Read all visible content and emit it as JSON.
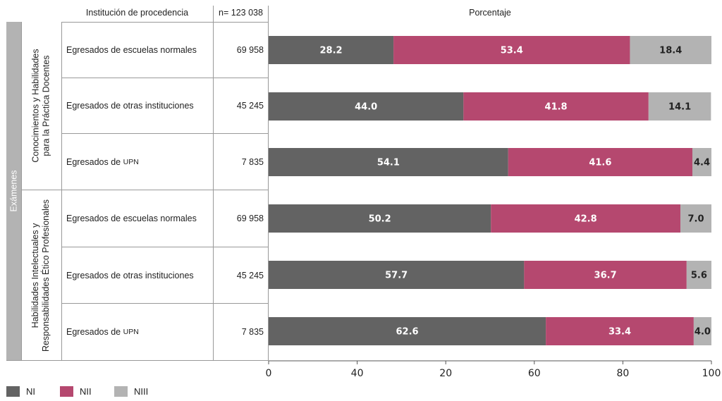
{
  "header": {
    "institution": "Institución de procedencia",
    "n_total": "n= 123 038",
    "percent": "Porcentaje"
  },
  "outer_label": "Exámenes",
  "groups": [
    {
      "line1": "Conocimientos y Habilidades",
      "line2": "para la Práctica Docentes"
    },
    {
      "line1": "Habilidades Intelectuales y",
      "line2": "Responsabilidades Ético Profesionales"
    }
  ],
  "rows": [
    {
      "label": "Egresados de escuelas normales",
      "n": "69 958"
    },
    {
      "label": "Egresados de otras instituciones",
      "n": "45 245"
    },
    {
      "label": "Egresados de",
      "label_sc": "UPN",
      "n": "7 835"
    },
    {
      "label": "Egresados de escuelas normales",
      "n": "69 958"
    },
    {
      "label": "Egresados de otras instituciones",
      "n": "45 245"
    },
    {
      "label": "Egresados de",
      "label_sc": "UPN",
      "n": "7 835"
    }
  ],
  "chart_data": {
    "type": "bar",
    "orientation": "horizontal",
    "stacked": true,
    "categories": [
      "Egresados de escuelas normales",
      "Egresados de otras instituciones",
      "Egresados de UPN",
      "Egresados de escuelas normales",
      "Egresados de otras instituciones",
      "Egresados de UPN"
    ],
    "series": [
      {
        "name": "NI",
        "color": "#636363",
        "values": [
          28.2,
          44.0,
          54.1,
          50.2,
          57.7,
          62.6
        ],
        "labels": [
          "28.2",
          "44.0",
          "54.1",
          "50.2",
          "57.7",
          "62.6"
        ]
      },
      {
        "name": "NII",
        "color": "#b5486f",
        "values": [
          53.4,
          41.8,
          41.6,
          42.8,
          36.7,
          33.4
        ],
        "labels": [
          "53.4",
          "41.8",
          "41.6",
          "42.8",
          "36.7",
          "33.4"
        ]
      },
      {
        "name": "NIII",
        "color": "#b3b3b3",
        "values": [
          18.4,
          14.1,
          4.4,
          7.0,
          5.6,
          4.0
        ],
        "labels": [
          "18.4",
          "14.1",
          "4.4",
          "7.0",
          "5.6",
          "4.0"
        ]
      }
    ],
    "xlim": [
      0,
      100
    ],
    "xticks": [
      "0",
      "40",
      "20",
      "60",
      "80",
      "100"
    ],
    "legend": "bottom-left"
  }
}
